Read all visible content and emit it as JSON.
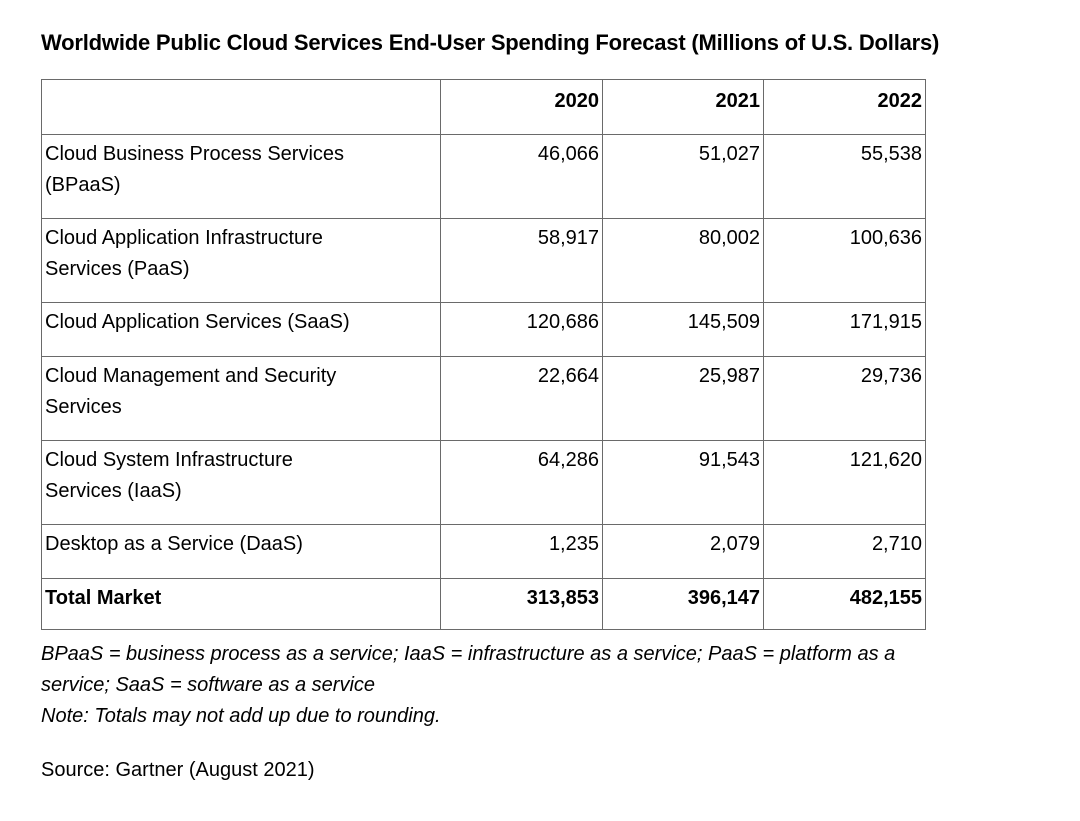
{
  "title": "Worldwide Public Cloud Services End-User Spending Forecast (Millions of U.S. Dollars)",
  "table": {
    "year_headers": [
      "2020",
      "2021",
      "2022"
    ],
    "rows": [
      {
        "label": "Cloud Business Process Services (BPaaS)",
        "values": [
          "46,066",
          "51,027",
          "55,538"
        ]
      },
      {
        "label": "Cloud Application Infrastructure Services (PaaS)",
        "values": [
          "58,917",
          "80,002",
          "100,636"
        ]
      },
      {
        "label": "Cloud Application Services (SaaS)",
        "values": [
          "120,686",
          "145,509",
          "171,915"
        ]
      },
      {
        "label": "Cloud Management and Security Services",
        "values": [
          "22,664",
          "25,987",
          "29,736"
        ]
      },
      {
        "label": "Cloud System Infrastructure Services (IaaS)",
        "values": [
          "64,286",
          "91,543",
          "121,620"
        ]
      },
      {
        "label": "Desktop as a Service (DaaS)",
        "values": [
          "1,235",
          "2,079",
          "2,710"
        ]
      }
    ],
    "total_row": {
      "label": "Total Market",
      "values": [
        "313,853",
        "396,147",
        "482,155"
      ]
    }
  },
  "footnotes": {
    "abbreviations": "BPaaS = business process as a service; IaaS = infrastructure as a service; PaaS = platform as a service; SaaS = software as a service",
    "rounding_note": "Note: Totals may not add up due to rounding."
  },
  "source": "Source: Gartner (August 2021)",
  "colors": {
    "background": "#ffffff",
    "text": "#000000",
    "table_border": "#6a6a6a"
  },
  "chart_data": {
    "type": "table",
    "title": "Worldwide Public Cloud Services End-User Spending Forecast (Millions of U.S. Dollars)",
    "columns": [
      "",
      "2020",
      "2021",
      "2022"
    ],
    "categories": [
      "Cloud Business Process Services (BPaaS)",
      "Cloud Application Infrastructure Services (PaaS)",
      "Cloud Application Services (SaaS)",
      "Cloud Management and Security Services",
      "Cloud System Infrastructure Services (IaaS)",
      "Desktop as a Service (DaaS)",
      "Total Market"
    ],
    "series": [
      {
        "name": "2020",
        "values": [
          46066,
          58917,
          120686,
          22664,
          64286,
          1235,
          313853
        ]
      },
      {
        "name": "2021",
        "values": [
          51027,
          80002,
          145509,
          25987,
          91543,
          2079,
          396147
        ]
      },
      {
        "name": "2022",
        "values": [
          55538,
          100636,
          171915,
          29736,
          121620,
          2710,
          482155
        ]
      }
    ],
    "notes": [
      "BPaaS = business process as a service; IaaS = infrastructure as a service; PaaS = platform as a service; SaaS = software as a service",
      "Note: Totals may not add up due to rounding."
    ],
    "source": "Source: Gartner (August 2021)"
  }
}
